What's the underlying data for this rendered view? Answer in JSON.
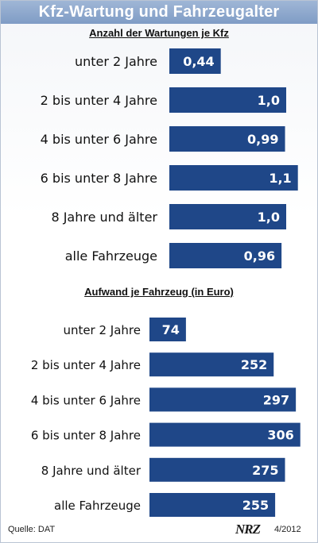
{
  "title": "Kfz-Wartung und Fahrzeugalter",
  "footer": {
    "source": "Quelle: DAT",
    "logo": "NRZ",
    "date": "4/2012"
  },
  "colors": {
    "bar": "#1f4788",
    "bar_text": "#ffffff",
    "title_bar": "#8aa5cc"
  },
  "chart_data": [
    {
      "type": "bar",
      "orientation": "horizontal",
      "title": "Anzahl der Wartungen je Kfz",
      "categories": [
        "unter 2 Jahre",
        "2 bis unter 4 Jahre",
        "4 bis unter 6 Jahre",
        "6 bis unter 8 Jahre",
        "8 Jahre und älter",
        "alle Fahrzeuge"
      ],
      "values": [
        0.44,
        1.0,
        0.99,
        1.1,
        1.0,
        0.96
      ],
      "value_labels": [
        "0,44",
        "1,0",
        "0,99",
        "1,1",
        "1,0",
        "0,96"
      ]
    },
    {
      "type": "bar",
      "orientation": "horizontal",
      "title": "Aufwand je Fahrzeug (in Euro)",
      "categories": [
        "unter 2 Jahre",
        "2 bis unter 4 Jahre",
        "4 bis unter 6 Jahre",
        "6 bis unter 8 Jahre",
        "8 Jahre und älter",
        "alle Fahrzeuge"
      ],
      "values": [
        74,
        252,
        297,
        306,
        275,
        255
      ],
      "value_labels": [
        "74",
        "252",
        "297",
        "306",
        "275",
        "255"
      ]
    }
  ]
}
